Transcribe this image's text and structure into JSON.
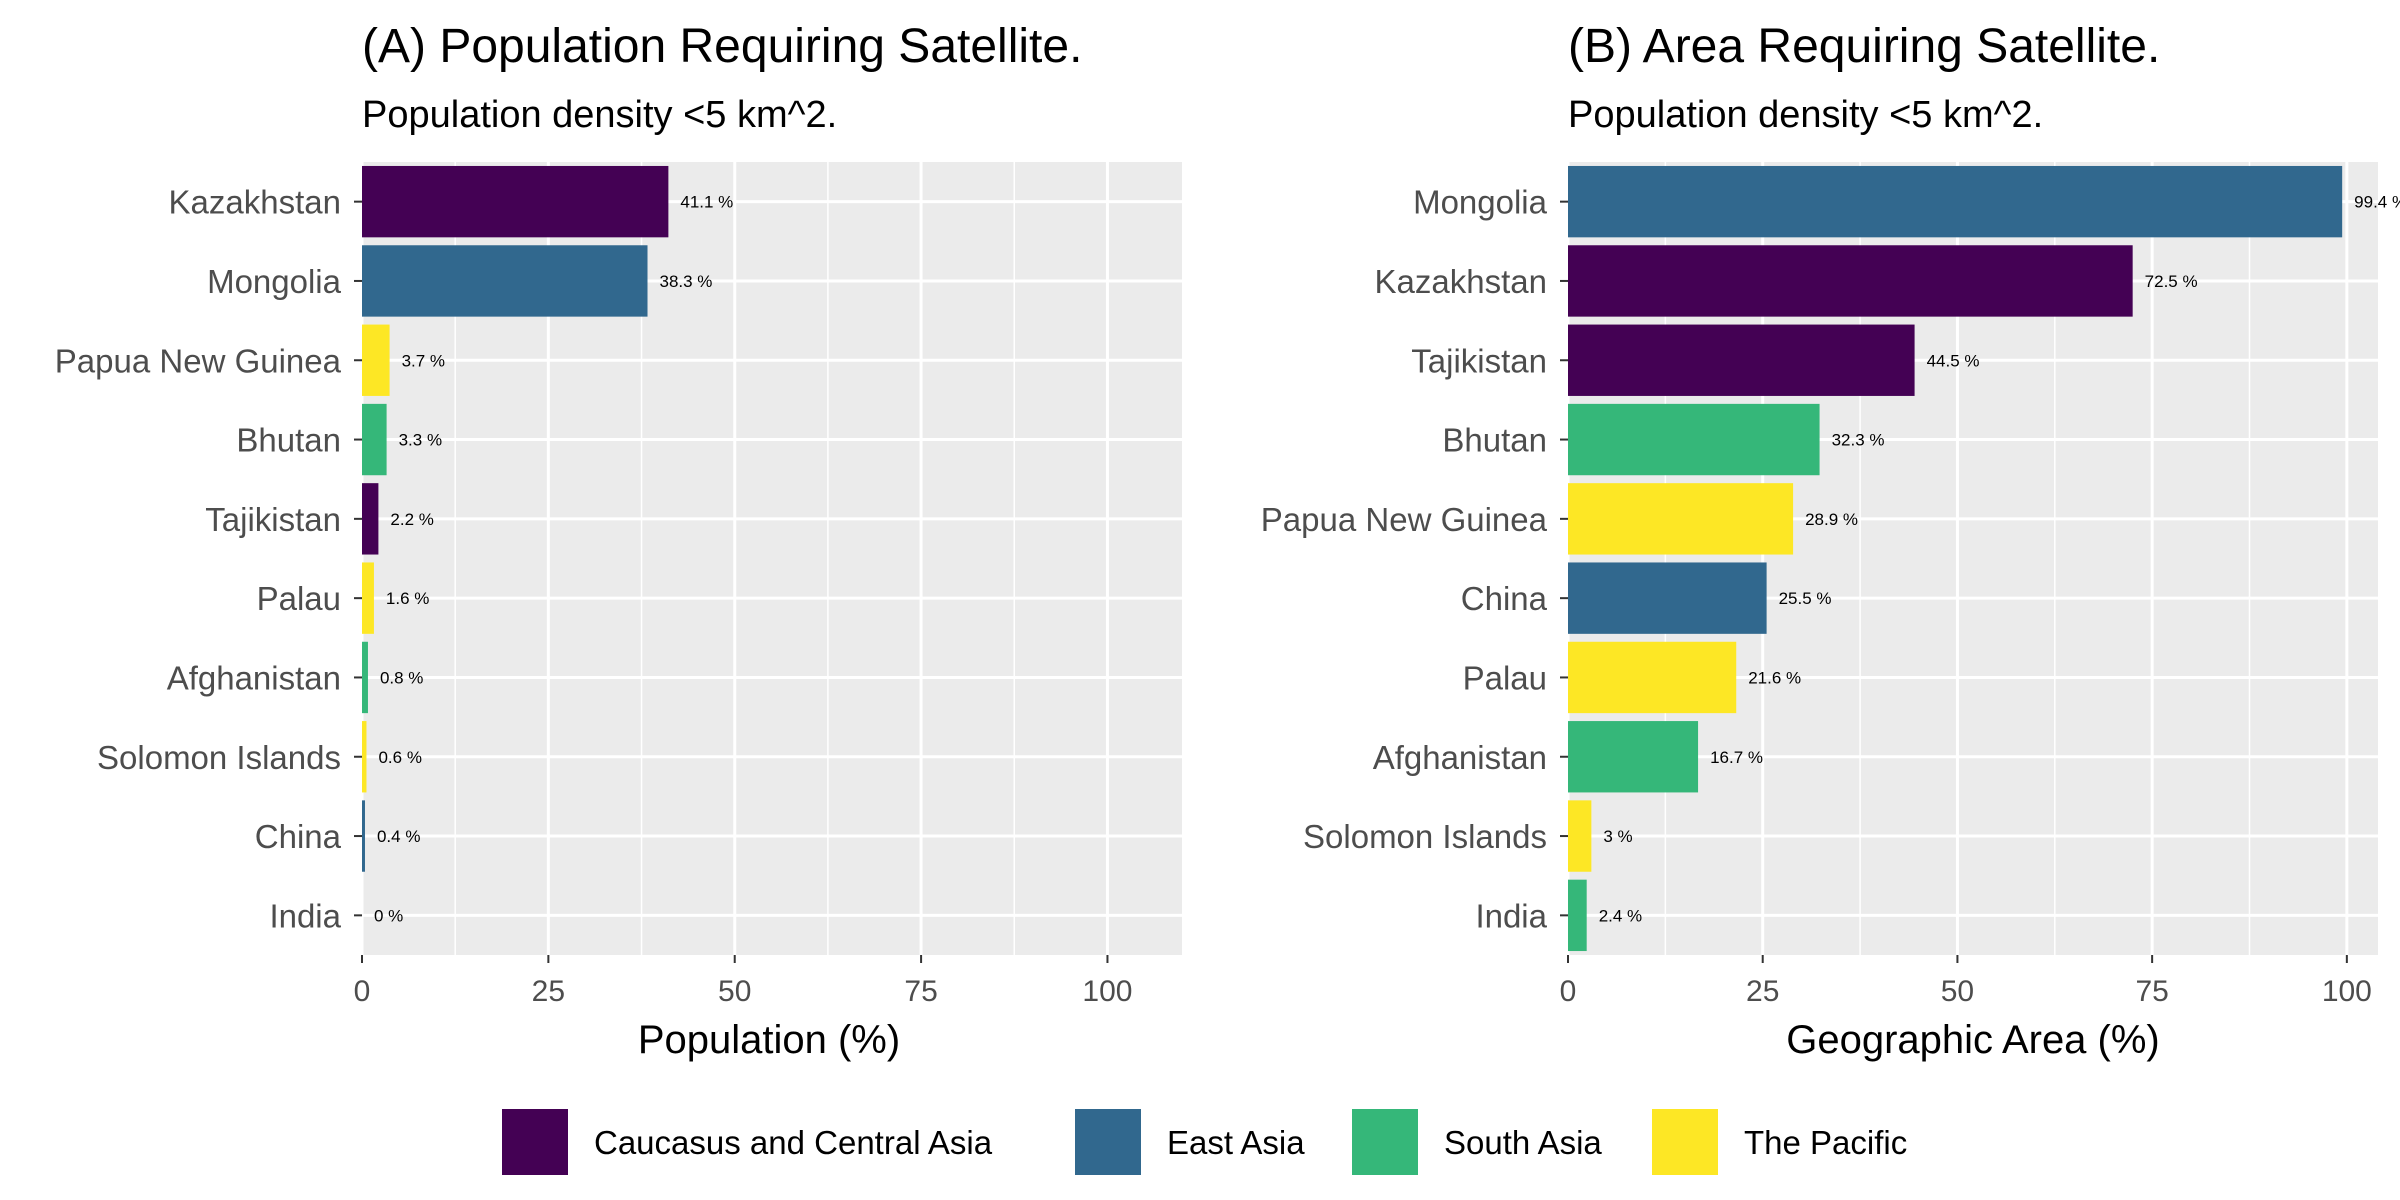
{
  "colors": {
    "Caucasus and Central Asia": "#440154",
    "East Asia": "#31688E",
    "South Asia": "#35B779",
    "The Pacific": "#FDE725",
    "panel_background": "#EBEBEB",
    "grid": "#FFFFFF"
  },
  "legend": {
    "placement": "bottom",
    "items": [
      {
        "label": "Caucasus and Central Asia",
        "color": "#440154"
      },
      {
        "label": "East Asia",
        "color": "#31688E"
      },
      {
        "label": "South Asia",
        "color": "#35B779"
      },
      {
        "label": "The Pacific",
        "color": "#FDE725"
      }
    ]
  },
  "chart_data": [
    {
      "type": "bar",
      "orientation": "horizontal",
      "title": "(A) Population Requiring Satellite.",
      "subtitle": "Population density <5 km^2.",
      "xlabel": "Population (%)",
      "ylabel": "",
      "xlim": [
        0,
        110
      ],
      "xticks": [
        0,
        25,
        50,
        75,
        100
      ],
      "grid": true,
      "categories": [
        "Kazakhstan",
        "Mongolia",
        "Papua New Guinea",
        "Bhutan",
        "Tajikistan",
        "Palau",
        "Afghanistan",
        "Solomon Islands",
        "China",
        "India"
      ],
      "values": [
        41.1,
        38.3,
        3.7,
        3.3,
        2.2,
        1.6,
        0.8,
        0.6,
        0.4,
        0
      ],
      "labels": [
        "41.1 %",
        "38.3 %",
        "3.7 %",
        "3.3 %",
        "2.2 %",
        "1.6 %",
        "0.8 %",
        "0.6 %",
        "0.4 %",
        "0 %"
      ],
      "groups": [
        "Caucasus and Central Asia",
        "East Asia",
        "The Pacific",
        "South Asia",
        "Caucasus and Central Asia",
        "The Pacific",
        "South Asia",
        "The Pacific",
        "East Asia",
        "South Asia"
      ]
    },
    {
      "type": "bar",
      "orientation": "horizontal",
      "title": "(B) Area Requiring Satellite.",
      "subtitle": "Population density <5 km^2.",
      "xlabel": "Geographic Area (%)",
      "ylabel": "",
      "xlim": [
        0,
        104
      ],
      "xticks": [
        0,
        25,
        50,
        75,
        100
      ],
      "grid": true,
      "categories": [
        "Mongolia",
        "Kazakhstan",
        "Tajikistan",
        "Bhutan",
        "Papua New Guinea",
        "China",
        "Palau",
        "Afghanistan",
        "Solomon Islands",
        "India"
      ],
      "values": [
        99.4,
        72.5,
        44.5,
        32.3,
        28.9,
        25.5,
        21.6,
        16.7,
        3,
        2.4
      ],
      "labels": [
        "99.4 %",
        "72.5 %",
        "44.5 %",
        "32.3 %",
        "28.9 %",
        "25.5 %",
        "21.6 %",
        "16.7 %",
        "3 %",
        "2.4 %"
      ],
      "groups": [
        "East Asia",
        "Caucasus and Central Asia",
        "Caucasus and Central Asia",
        "South Asia",
        "The Pacific",
        "East Asia",
        "The Pacific",
        "South Asia",
        "The Pacific",
        "South Asia"
      ]
    }
  ]
}
